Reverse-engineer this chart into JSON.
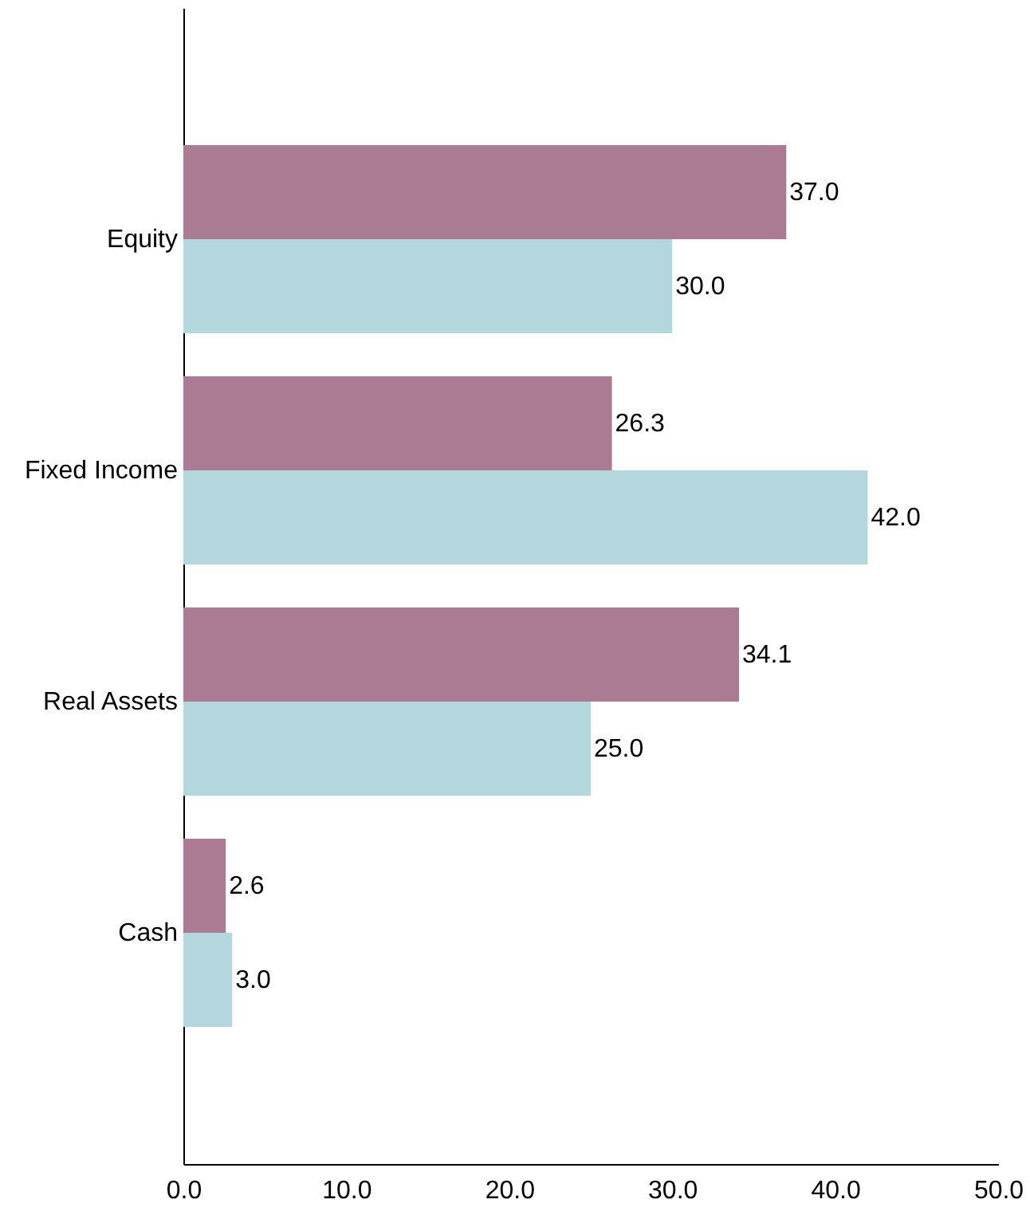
{
  "chart_data": {
    "type": "bar",
    "orientation": "horizontal",
    "categories": [
      "Equity",
      "Fixed Income",
      "Real Assets",
      "Cash"
    ],
    "series": [
      {
        "color": "#ab7b93",
        "values": [
          37.0,
          26.3,
          34.1,
          2.6
        ],
        "value_labels": [
          "37.0",
          "26.3",
          "34.1",
          "2.6"
        ]
      },
      {
        "color": "#b4d7dd",
        "values": [
          30.0,
          42.0,
          25.0,
          3.0
        ],
        "value_labels": [
          "30.0",
          "42.0",
          "25.0",
          "3.0"
        ]
      }
    ],
    "xlim": [
      0,
      50
    ],
    "xticks": [
      {
        "value": 0,
        "label": "0.0"
      },
      {
        "value": 10,
        "label": "10.0"
      },
      {
        "value": 20,
        "label": "20.0"
      },
      {
        "value": 30,
        "label": "30.0"
      },
      {
        "value": 40,
        "label": "40.0"
      },
      {
        "value": 50,
        "label": "50.0"
      }
    ],
    "grid": false
  }
}
